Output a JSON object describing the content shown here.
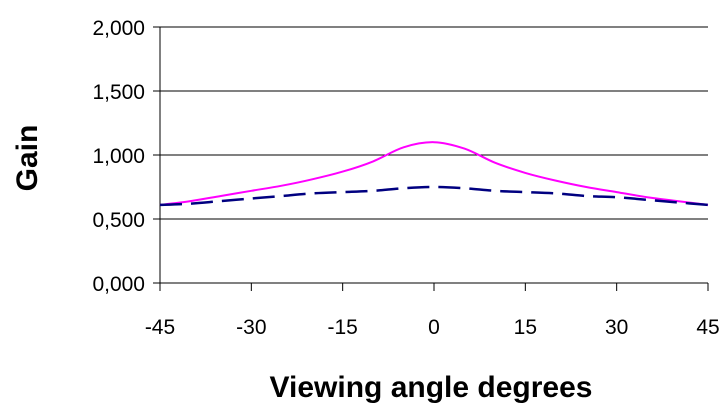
{
  "chart_data": {
    "type": "line",
    "title": "",
    "xlabel": "Viewing angle degrees",
    "ylabel": "Gain",
    "xlim": [
      -45,
      45
    ],
    "ylim": [
      0,
      2
    ],
    "x_ticks": [
      -45,
      -30,
      -15,
      0,
      15,
      30,
      45
    ],
    "x_tick_labels": [
      "-45",
      "-30",
      "-15",
      "0",
      "15",
      "30",
      "45"
    ],
    "y_ticks": [
      0,
      0.5,
      1,
      1.5,
      2
    ],
    "y_tick_labels": [
      "0,000",
      "0,500",
      "1,000",
      "1,500",
      "2,000"
    ],
    "grid": "horizontal",
    "legend": "none",
    "series": [
      {
        "color": "#ff00ff",
        "style": "solid",
        "x": [
          -45,
          -40,
          -35,
          -30,
          -25,
          -20,
          -15,
          -10,
          -5,
          0,
          5,
          10,
          15,
          20,
          25,
          30,
          35,
          40,
          45
        ],
        "y": [
          0.61,
          0.64,
          0.68,
          0.72,
          0.76,
          0.81,
          0.87,
          0.95,
          1.06,
          1.1,
          1.05,
          0.94,
          0.86,
          0.8,
          0.75,
          0.71,
          0.67,
          0.64,
          0.61
        ]
      },
      {
        "color": "#000080",
        "style": "dashed",
        "x": [
          -45,
          -40,
          -35,
          -30,
          -25,
          -20,
          -15,
          -10,
          -5,
          0,
          5,
          10,
          15,
          20,
          25,
          30,
          35,
          40,
          45
        ],
        "y": [
          0.61,
          0.62,
          0.64,
          0.66,
          0.68,
          0.7,
          0.71,
          0.72,
          0.74,
          0.75,
          0.74,
          0.72,
          0.71,
          0.7,
          0.68,
          0.67,
          0.65,
          0.63,
          0.61
        ]
      }
    ]
  }
}
